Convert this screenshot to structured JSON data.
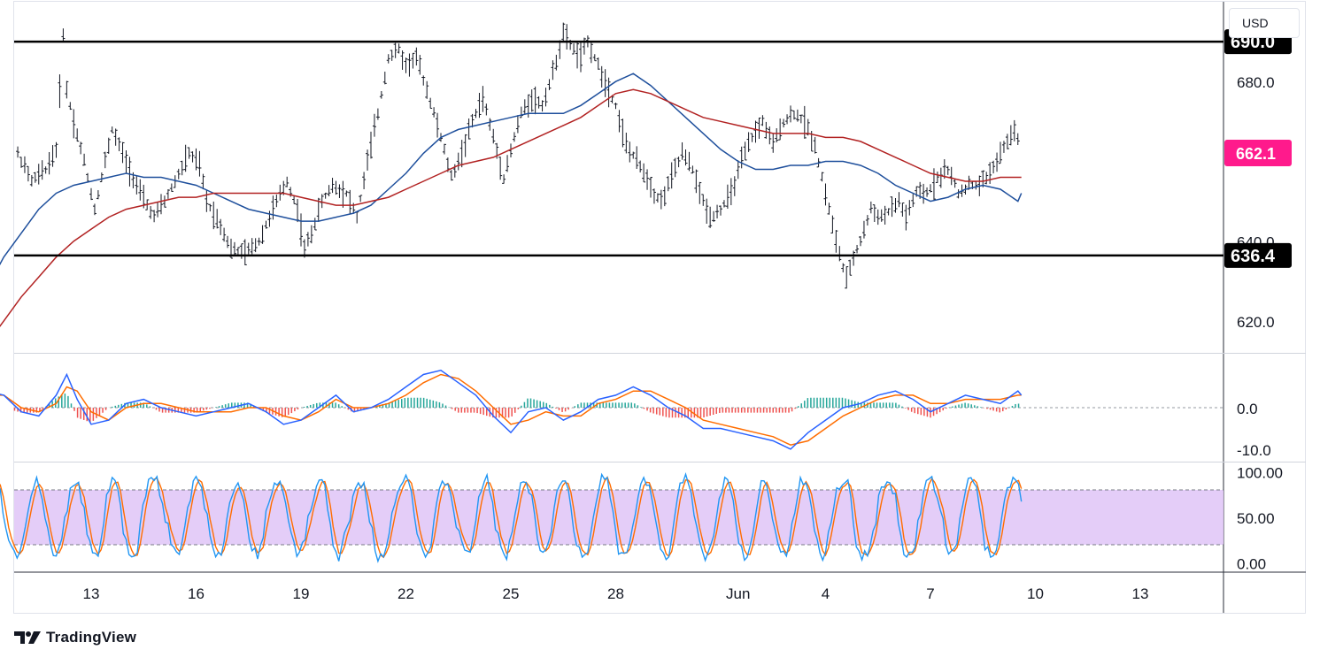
{
  "chart_data": [
    {
      "type": "line",
      "panel": "price",
      "currency": "USD",
      "x_ticks": [
        "13",
        "16",
        "19",
        "22",
        "25",
        "28",
        "Jun",
        "4",
        "7",
        "10",
        "13"
      ],
      "y_ticks": [
        "620.0",
        "640.0",
        "680.0"
      ],
      "ylim": [
        612,
        700
      ],
      "horizontal_levels": [
        {
          "value": 690.0,
          "label": "690.0",
          "color": "#000000"
        },
        {
          "value": 636.4,
          "label": "636.4",
          "color": "#000000"
        }
      ],
      "last_price": {
        "value": 662.1,
        "label": "662.1",
        "color": "#ff1a8c"
      },
      "series": [
        {
          "kind": "ohlc",
          "color": "#131722",
          "x": [
            10.6,
            10.9,
            11.3,
            11.7,
            12.0,
            12.2,
            12.3,
            12.5,
            12.8,
            13.1,
            13.3,
            13.6,
            14.0,
            14.4,
            14.8,
            15.1,
            15.4,
            15.8,
            16.1,
            16.3,
            16.7,
            17.0,
            17.4,
            17.8,
            18.2,
            18.6,
            18.9,
            19.1,
            19.3,
            19.6,
            19.9,
            20.3,
            20.6,
            20.9,
            21.2,
            21.5,
            21.8,
            22.0,
            22.3,
            22.6,
            23.0,
            23.3,
            23.6,
            23.9,
            24.2,
            24.5,
            24.8,
            25.1,
            25.3,
            25.6,
            25.9,
            26.2,
            26.5,
            26.8,
            27.0,
            27.2,
            27.4,
            27.7,
            28.0,
            28.3,
            28.6,
            28.9,
            29.1,
            29.3,
            29.6,
            29.9,
            30.2,
            30.4,
            30.7,
            31.0,
            31.3,
            31.6,
            31.9,
            32.2,
            32.5,
            32.8,
            33.1,
            33.4,
            33.7,
            34.0,
            34.3,
            34.6,
            34.8,
            35.0,
            35.3,
            35.6,
            35.9,
            36.1,
            36.3,
            36.6,
            36.9,
            37.2,
            37.5,
            37.8,
            38.1,
            38.4,
            38.6,
            38.9,
            39.2,
            39.4,
            39.6
          ],
          "values": [
            667,
            662,
            655,
            658,
            663,
            692,
            678,
            670,
            660,
            648,
            656,
            668,
            660,
            652,
            646,
            650,
            655,
            662,
            659,
            650,
            644,
            638,
            637,
            640,
            648,
            655,
            648,
            638,
            642,
            650,
            654,
            652,
            646,
            660,
            672,
            686,
            688,
            684,
            686,
            678,
            666,
            656,
            662,
            670,
            676,
            666,
            656,
            666,
            672,
            676,
            674,
            682,
            692,
            688,
            686,
            690,
            686,
            680,
            674,
            664,
            660,
            656,
            652,
            650,
            656,
            662,
            658,
            652,
            646,
            648,
            652,
            660,
            666,
            670,
            664,
            670,
            672,
            670,
            664,
            652,
            640,
            630,
            636,
            640,
            648,
            646,
            648,
            650,
            646,
            652,
            652,
            656,
            658,
            652,
            654,
            654,
            656,
            660,
            665,
            668,
            664
          ]
        },
        {
          "kind": "ma",
          "name": "",
          "color": "#1e4f9c",
          "x": [
            10.0,
            10.5,
            11.0,
            11.5,
            12.0,
            12.5,
            13.0,
            13.5,
            14.0,
            14.5,
            15.0,
            15.5,
            16.0,
            16.5,
            17.0,
            17.5,
            18.0,
            18.5,
            19.0,
            19.5,
            20.0,
            20.5,
            21.0,
            21.5,
            22.0,
            22.5,
            23.0,
            23.5,
            24.0,
            24.5,
            25.0,
            25.5,
            26.0,
            26.5,
            27.0,
            27.5,
            28.0,
            28.5,
            29.0,
            29.5,
            30.0,
            30.5,
            31.0,
            31.5,
            32.0,
            32.5,
            33.0,
            33.5,
            34.0,
            34.5,
            35.0,
            35.5,
            36.0,
            36.5,
            37.0,
            37.5,
            38.0,
            38.5,
            39.0,
            39.5,
            39.6
          ],
          "values": [
            628,
            636,
            642,
            648,
            652,
            654,
            655,
            656,
            657,
            656,
            656,
            655,
            654,
            652,
            650,
            648,
            647,
            646,
            645,
            645,
            646,
            647,
            649,
            653,
            657,
            662,
            666,
            668,
            669,
            670,
            671,
            672,
            672,
            672,
            674,
            677,
            680,
            682,
            679,
            675,
            671,
            667,
            663,
            660,
            658,
            658,
            659,
            659,
            660,
            660,
            659,
            657,
            654,
            652,
            650,
            651,
            653,
            654,
            653,
            650,
            652
          ]
        },
        {
          "kind": "ma",
          "name": "",
          "color": "#b22222",
          "x": [
            10.0,
            10.5,
            11.0,
            11.5,
            12.0,
            12.5,
            13.0,
            13.5,
            14.0,
            14.5,
            15.0,
            15.5,
            16.0,
            16.5,
            17.0,
            17.5,
            18.0,
            18.5,
            19.0,
            19.5,
            20.0,
            20.5,
            21.0,
            21.5,
            22.0,
            22.5,
            23.0,
            23.5,
            24.0,
            24.5,
            25.0,
            25.5,
            26.0,
            26.5,
            27.0,
            27.5,
            28.0,
            28.5,
            29.0,
            29.5,
            30.0,
            30.5,
            31.0,
            31.5,
            32.0,
            32.5,
            33.0,
            33.5,
            34.0,
            34.5,
            35.0,
            35.5,
            36.0,
            36.5,
            37.0,
            37.5,
            38.0,
            38.5,
            39.0,
            39.5,
            39.6
          ],
          "values": [
            614,
            620,
            626,
            631,
            636,
            640,
            643,
            646,
            648,
            649,
            650,
            651,
            651,
            652,
            652,
            652,
            652,
            652,
            651,
            650,
            649,
            649,
            650,
            651,
            653,
            655,
            657,
            659,
            660,
            661,
            663,
            665,
            667,
            669,
            671,
            674,
            677,
            678,
            677,
            675,
            673,
            671,
            670,
            669,
            668,
            667,
            667,
            667,
            666,
            666,
            665,
            663,
            661,
            659,
            657,
            656,
            655,
            655,
            656,
            656,
            656
          ]
        }
      ]
    },
    {
      "type": "line",
      "panel": "macd",
      "y_ticks": [
        "0.0",
        "-10.0"
      ],
      "ylim": [
        -13,
        13
      ],
      "series": [
        {
          "name": "",
          "color": "#2962ff",
          "x": [
            10.0,
            10.5,
            11.0,
            11.5,
            12.0,
            12.3,
            12.6,
            13.0,
            13.5,
            14.0,
            14.5,
            15.0,
            15.5,
            16.0,
            16.5,
            17.0,
            17.5,
            18.0,
            18.5,
            19.0,
            19.5,
            20.0,
            20.5,
            21.0,
            21.5,
            22.0,
            22.5,
            23.0,
            23.5,
            24.0,
            24.5,
            25.0,
            25.5,
            26.0,
            26.5,
            27.0,
            27.5,
            28.0,
            28.5,
            29.0,
            29.5,
            30.0,
            30.5,
            31.0,
            31.5,
            32.0,
            32.5,
            33.0,
            33.5,
            34.0,
            34.5,
            35.0,
            35.5,
            36.0,
            36.5,
            37.0,
            37.5,
            38.0,
            38.5,
            39.0,
            39.5,
            39.6
          ],
          "values": [
            4,
            3,
            -1,
            -2,
            3,
            8,
            2,
            -4,
            -3,
            1,
            2,
            0,
            -1,
            -2,
            -1,
            0,
            1,
            -1,
            -4,
            -3,
            0,
            3,
            -1,
            0,
            2,
            5,
            8,
            9,
            6,
            3,
            -2,
            -6,
            -1,
            0,
            -3,
            -1,
            2,
            3,
            5,
            3,
            0,
            -2,
            -5,
            -5,
            -6,
            -7,
            -8,
            -10,
            -6,
            -3,
            0,
            1,
            3,
            4,
            2,
            -1,
            1,
            3,
            2,
            1,
            4,
            3
          ]
        },
        {
          "name": "",
          "color": "#ff6d00",
          "x": [
            10.0,
            10.5,
            11.0,
            11.5,
            12.0,
            12.3,
            12.6,
            13.0,
            13.5,
            14.0,
            14.5,
            15.0,
            15.5,
            16.0,
            16.5,
            17.0,
            17.5,
            18.0,
            18.5,
            19.0,
            19.5,
            20.0,
            20.5,
            21.0,
            21.5,
            22.0,
            22.5,
            23.0,
            23.5,
            24.0,
            24.5,
            25.0,
            25.5,
            26.0,
            26.5,
            27.0,
            27.5,
            28.0,
            28.5,
            29.0,
            29.5,
            30.0,
            30.5,
            31.0,
            31.5,
            32.0,
            32.5,
            33.0,
            33.5,
            34.0,
            34.5,
            35.0,
            35.5,
            36.0,
            36.5,
            37.0,
            37.5,
            38.0,
            38.5,
            39.0,
            39.5,
            39.6
          ],
          "values": [
            3,
            3,
            0,
            -1,
            1,
            5,
            4,
            -1,
            -3,
            0,
            1,
            1,
            0,
            -1,
            -1,
            -1,
            0,
            0,
            -2,
            -3,
            -1,
            2,
            0,
            0,
            1,
            3,
            6,
            8,
            7,
            4,
            0,
            -4,
            -3,
            -1,
            -2,
            -2,
            1,
            2,
            4,
            4,
            2,
            0,
            -3,
            -4,
            -5,
            -6,
            -7,
            -9,
            -8,
            -5,
            -2,
            0,
            2,
            3,
            3,
            1,
            1,
            2,
            2,
            2,
            3,
            3
          ]
        }
      ]
    },
    {
      "type": "line",
      "panel": "stochastic_rsi",
      "y_ticks": [
        "0.00",
        "50.00",
        "100.00"
      ],
      "ylim": [
        -10,
        110
      ],
      "band": [
        20,
        80
      ],
      "series": [
        {
          "name": "",
          "color": "#2196f3"
        },
        {
          "name": "",
          "color": "#ff6d00"
        }
      ]
    }
  ],
  "brand": {
    "name": "TradingView"
  }
}
